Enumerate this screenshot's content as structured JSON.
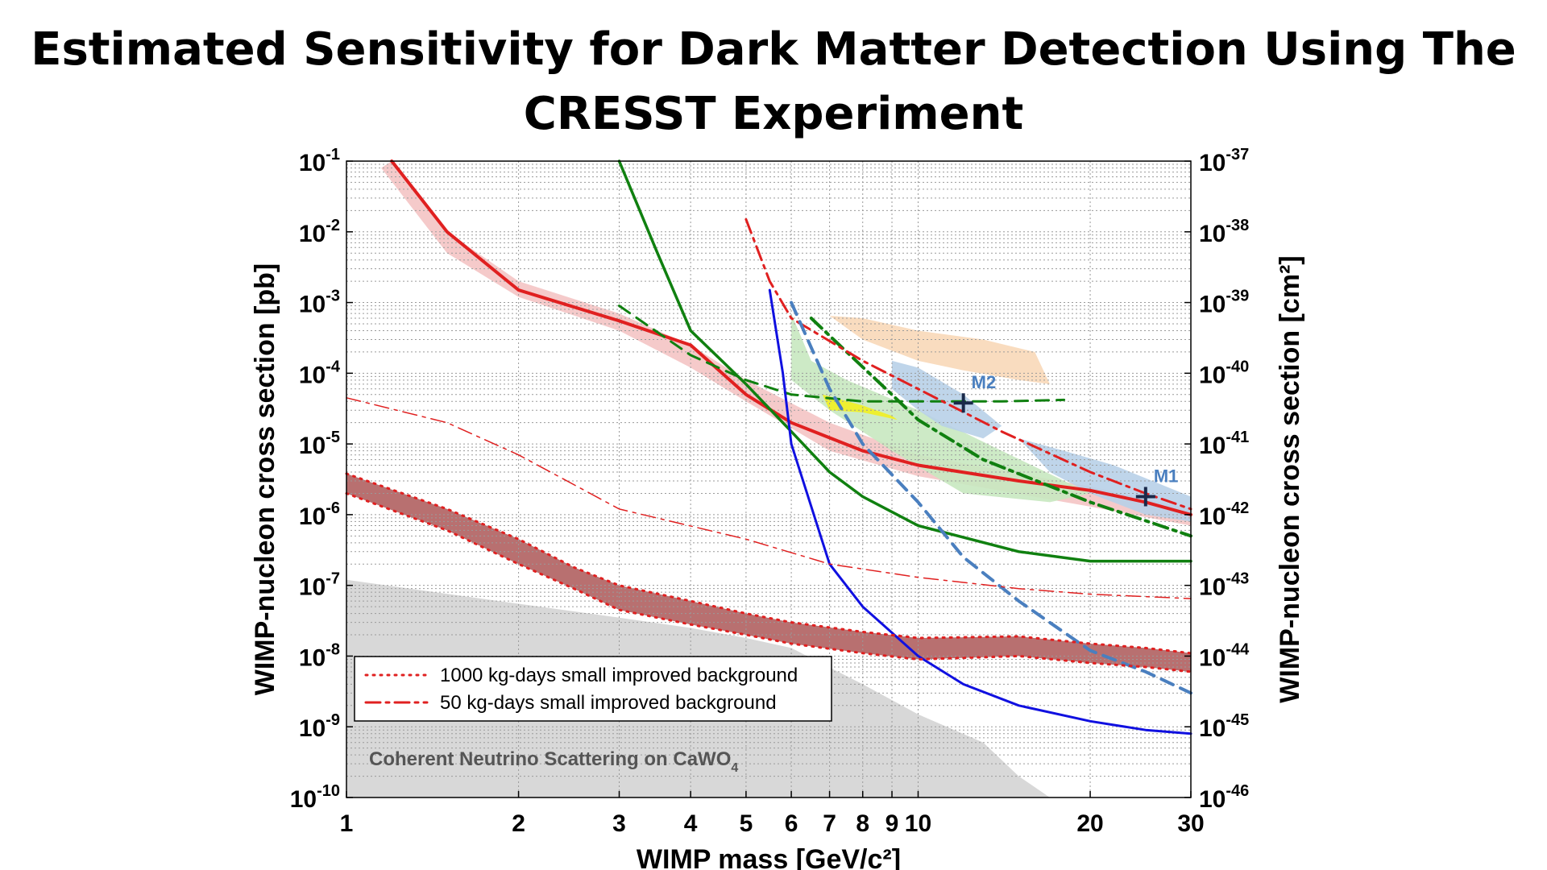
{
  "chart_data": {
    "type": "line",
    "title": "Estimated Sensitivity for Dark Matter Detection Using The CRESST Experiment",
    "xlabel": "WIMP mass [GeV/c²]",
    "ylabel_left": "WIMP-nucleon cross section [pb]",
    "ylabel_right": "WIMP-nucleon cross section [cm²]",
    "xscale": "log",
    "yscale": "log",
    "xlim": [
      1,
      30
    ],
    "ylim_left": [
      1e-10,
      0.1
    ],
    "ylim_right": [
      1e-46,
      1e-37
    ],
    "grid": true,
    "x_ticks": [
      {
        "value": 1,
        "label": "1"
      },
      {
        "value": 2,
        "label": "2"
      },
      {
        "value": 3,
        "label": "3"
      },
      {
        "value": 4,
        "label": "4"
      },
      {
        "value": 5,
        "label": "5"
      },
      {
        "value": 6,
        "label": "6"
      },
      {
        "value": 7,
        "label": "7"
      },
      {
        "value": 8,
        "label": "8"
      },
      {
        "value": 9,
        "label": "9"
      },
      {
        "value": 10,
        "label": "10"
      },
      {
        "value": 20,
        "label": "20"
      },
      {
        "value": 30,
        "label": "30"
      }
    ],
    "y_ticks_left": [
      {
        "exp": -1,
        "base": "10",
        "sup": "-1"
      },
      {
        "exp": -2,
        "base": "10",
        "sup": "-2"
      },
      {
        "exp": -3,
        "base": "10",
        "sup": "-3"
      },
      {
        "exp": -4,
        "base": "10",
        "sup": "-4"
      },
      {
        "exp": -5,
        "base": "10",
        "sup": "-5"
      },
      {
        "exp": -6,
        "base": "10",
        "sup": "-6"
      },
      {
        "exp": -7,
        "base": "10",
        "sup": "-7"
      },
      {
        "exp": -8,
        "base": "10",
        "sup": "-8"
      },
      {
        "exp": -9,
        "base": "10",
        "sup": "-9"
      },
      {
        "exp": -10,
        "base": "10",
        "sup": "-10"
      }
    ],
    "y_ticks_right": [
      {
        "exp": -37,
        "base": "10",
        "sup": "-37"
      },
      {
        "exp": -38,
        "base": "10",
        "sup": "-38"
      },
      {
        "exp": -39,
        "base": "10",
        "sup": "-39"
      },
      {
        "exp": -40,
        "base": "10",
        "sup": "-40"
      },
      {
        "exp": -41,
        "base": "10",
        "sup": "-41"
      },
      {
        "exp": -42,
        "base": "10",
        "sup": "-42"
      },
      {
        "exp": -43,
        "base": "10",
        "sup": "-43"
      },
      {
        "exp": -44,
        "base": "10",
        "sup": "-44"
      },
      {
        "exp": -45,
        "base": "10",
        "sup": "-45"
      },
      {
        "exp": -46,
        "base": "10",
        "sup": "-46"
      }
    ],
    "legend": {
      "placement": "bottom-left",
      "entries": [
        {
          "label": "1000 kg-days small improved background",
          "style": "dotted",
          "color": "#e02020"
        },
        {
          "label": "50 kg-days small improved background",
          "style": "dashdot",
          "color": "#e02020"
        }
      ]
    },
    "annotations": [
      {
        "text": "Coherent Neutrino Scattering on CaWO",
        "subscript": "4"
      }
    ],
    "markers": [
      {
        "label": "M1",
        "x": 25,
        "y": 1.8e-06,
        "color": "#4a7fbf"
      },
      {
        "label": "M2",
        "x": 12,
        "y": 3.8e-05,
        "color": "#4a7fbf"
      }
    ],
    "regions": [
      {
        "name": "neutrino floor",
        "color": "#d8d8d8",
        "points": [
          [
            1,
            1.2e-07
          ],
          [
            2,
            5.5e-08
          ],
          [
            3,
            3.5e-08
          ],
          [
            4,
            2.5e-08
          ],
          [
            5,
            1.8e-08
          ],
          [
            6,
            1.3e-08
          ],
          [
            8,
            4e-09
          ],
          [
            10,
            1.5e-09
          ],
          [
            13,
            6e-10
          ],
          [
            15,
            2e-10
          ],
          [
            17,
            1e-10
          ]
        ]
      },
      {
        "name": "1000 kg-days band",
        "color": "#b06060",
        "upper": [
          [
            1,
            3.8e-06
          ],
          [
            1.5,
            1.2e-06
          ],
          [
            2,
            4.5e-07
          ],
          [
            2.5,
            1.8e-07
          ],
          [
            3,
            1e-07
          ],
          [
            4,
            6e-08
          ],
          [
            5,
            4e-08
          ],
          [
            6,
            3e-08
          ],
          [
            8,
            2.2e-08
          ],
          [
            10,
            1.8e-08
          ],
          [
            15,
            1.9e-08
          ],
          [
            20,
            1.5e-08
          ],
          [
            25,
            1.3e-08
          ],
          [
            30,
            1.1e-08
          ]
        ],
        "lower": [
          [
            1,
            2e-06
          ],
          [
            1.5,
            6e-07
          ],
          [
            2,
            2e-07
          ],
          [
            2.5,
            9e-08
          ],
          [
            3,
            4.5e-08
          ],
          [
            4,
            2.8e-08
          ],
          [
            5,
            2e-08
          ],
          [
            6,
            1.5e-08
          ],
          [
            8,
            1.1e-08
          ],
          [
            10,
            9e-09
          ],
          [
            15,
            1e-08
          ],
          [
            20,
            8e-09
          ],
          [
            25,
            7e-09
          ],
          [
            30,
            6e-09
          ]
        ]
      },
      {
        "name": "red band",
        "color": "#f4c4c4",
        "upper": [
          [
            1.2,
            0.1
          ],
          [
            1.5,
            0.01
          ],
          [
            2,
            0.002
          ],
          [
            3,
            0.0007
          ],
          [
            4,
            0.00025
          ],
          [
            5,
            8e-05
          ],
          [
            7,
            2e-05
          ],
          [
            10,
            7e-06
          ],
          [
            20,
            2.5e-06
          ],
          [
            30,
            1.2e-06
          ]
        ],
        "lower": [
          [
            1.15,
            0.08
          ],
          [
            1.5,
            0.005
          ],
          [
            2,
            0.0012
          ],
          [
            3,
            0.0004
          ],
          [
            4,
            0.00012
          ],
          [
            5,
            4e-05
          ],
          [
            7,
            8e-06
          ],
          [
            10,
            3.5e-06
          ],
          [
            20,
            1.3e-06
          ],
          [
            30,
            7e-07
          ]
        ]
      },
      {
        "name": "green region",
        "color": "#c8e8c0",
        "points": [
          [
            6,
            0.0007
          ],
          [
            6.5,
            0.00015
          ],
          [
            7.5,
            8e-05
          ],
          [
            10,
            3e-05
          ],
          [
            14,
            8e-06
          ],
          [
            20,
            2e-06
          ],
          [
            17,
            1.5e-06
          ],
          [
            12,
            2e-06
          ],
          [
            9,
            8e-06
          ],
          [
            7,
            3e-05
          ],
          [
            6,
            8e-05
          ]
        ]
      },
      {
        "name": "orange region",
        "color": "#f8d8b8",
        "points": [
          [
            7,
            0.00065
          ],
          [
            8,
            0.0006
          ],
          [
            10,
            0.0004
          ],
          [
            13,
            0.0003
          ],
          [
            16,
            0.0002
          ],
          [
            17,
            7e-05
          ],
          [
            15,
            8e-05
          ],
          [
            12,
            0.00011
          ],
          [
            10,
            0.00015
          ],
          [
            8,
            0.0003
          ]
        ]
      },
      {
        "name": "blue M2 region",
        "color": "#b8d0e8",
        "points": [
          [
            9,
            0.00015
          ],
          [
            10,
            0.00012
          ],
          [
            12,
            5e-05
          ],
          [
            14,
            1.8e-05
          ],
          [
            13,
            1.2e-05
          ],
          [
            11,
            1.8e-05
          ],
          [
            10,
            3e-05
          ],
          [
            9,
            6e-05
          ]
        ]
      },
      {
        "name": "blue M1 region",
        "color": "#b8d0e8",
        "points": [
          [
            15,
            1.2e-05
          ],
          [
            18,
            8e-06
          ],
          [
            22,
            5e-06
          ],
          [
            30,
            1.8e-06
          ],
          [
            30,
            8e-07
          ],
          [
            25,
            1e-06
          ],
          [
            20,
            2e-06
          ],
          [
            17,
            4e-06
          ]
        ]
      },
      {
        "name": "yellow region",
        "color": "#f2f020",
        "points": [
          [
            6.8,
            5e-05
          ],
          [
            8,
            3.5e-05
          ],
          [
            9,
            2.5e-05
          ],
          [
            9.2,
            2.2e-05
          ],
          [
            8,
            2.8e-05
          ],
          [
            7,
            3e-05
          ]
        ]
      }
    ],
    "series": [
      {
        "color": "#e02020",
        "style": "solid",
        "width": 4,
        "points": [
          [
            1.2,
            0.1
          ],
          [
            1.5,
            0.01
          ],
          [
            2,
            0.0015
          ],
          [
            3,
            0.00055
          ],
          [
            4,
            0.00025
          ],
          [
            5,
            5e-05
          ],
          [
            6,
            2e-05
          ],
          [
            8,
            8e-06
          ],
          [
            10,
            5e-06
          ],
          [
            15,
            3e-06
          ],
          [
            20,
            2.2e-06
          ],
          [
            25,
            1.5e-06
          ],
          [
            30,
            1e-06
          ]
        ]
      },
      {
        "color": "#108010",
        "style": "solid",
        "width": 3.5,
        "points": [
          [
            3,
            0.1
          ],
          [
            3.5,
            0.005
          ],
          [
            4,
            0.0004
          ],
          [
            5,
            7e-05
          ],
          [
            6,
            1.5e-05
          ],
          [
            7,
            4e-06
          ],
          [
            8,
            1.8e-06
          ],
          [
            10,
            7e-07
          ],
          [
            15,
            3e-07
          ],
          [
            20,
            2.2e-07
          ],
          [
            30,
            2.2e-07
          ]
        ]
      },
      {
        "color": "#108010",
        "style": "dash",
        "width": 3,
        "points": [
          [
            3,
            0.0009
          ],
          [
            4,
            0.00018
          ],
          [
            5,
            8e-05
          ],
          [
            6,
            5e-05
          ],
          [
            8,
            4e-05
          ],
          [
            10,
            4e-05
          ],
          [
            14,
            4e-05
          ],
          [
            18,
            4.2e-05
          ]
        ]
      },
      {
        "color": "#108010",
        "style": "dashdot",
        "width": 4,
        "points": [
          [
            6.5,
            0.0006
          ],
          [
            7.5,
            0.0002
          ],
          [
            9,
            5e-05
          ],
          [
            10,
            2.2e-05
          ],
          [
            13,
            6e-06
          ],
          [
            20,
            1.5e-06
          ],
          [
            30,
            5e-07
          ]
        ]
      },
      {
        "color": "#e02020",
        "style": "dashdot",
        "width": 3,
        "points": [
          [
            5,
            0.015
          ],
          [
            5.5,
            0.002
          ],
          [
            6,
            0.0006
          ],
          [
            8,
            0.00015
          ],
          [
            10,
            6e-05
          ],
          [
            14,
            1.5e-05
          ],
          [
            20,
            4e-06
          ],
          [
            25,
            2e-06
          ],
          [
            30,
            1.2e-06
          ]
        ]
      },
      {
        "color": "#1010e0",
        "style": "solid",
        "width": 3,
        "points": [
          [
            5.5,
            0.0015
          ],
          [
            5.8,
            0.0001
          ],
          [
            6,
            1e-05
          ],
          [
            7,
            2e-07
          ],
          [
            8,
            5e-08
          ],
          [
            10,
            1e-08
          ],
          [
            12,
            4e-09
          ],
          [
            15,
            2e-09
          ],
          [
            20,
            1.2e-09
          ],
          [
            25,
            9e-10
          ],
          [
            30,
            8e-10
          ]
        ]
      },
      {
        "color": "#4a7fbf",
        "style": "dash",
        "width": 4,
        "points": [
          [
            6,
            0.001
          ],
          [
            7,
            6e-05
          ],
          [
            8,
            1e-05
          ],
          [
            10,
            1.5e-06
          ],
          [
            12,
            2.5e-07
          ],
          [
            15,
            6e-08
          ],
          [
            20,
            1.2e-08
          ],
          [
            25,
            6e-09
          ],
          [
            30,
            3e-09
          ]
        ]
      },
      {
        "color": "#e02020",
        "style": "dashdot",
        "width": 1.5,
        "points": [
          [
            1,
            4.5e-05
          ],
          [
            1.5,
            2e-05
          ],
          [
            2,
            7e-06
          ],
          [
            3,
            1.2e-06
          ],
          [
            5,
            4.5e-07
          ],
          [
            7,
            2e-07
          ],
          [
            10,
            1.3e-07
          ],
          [
            15,
            9e-08
          ],
          [
            20,
            7.5e-08
          ],
          [
            30,
            6.5e-08
          ]
        ]
      },
      {
        "color": "#e02020",
        "style": "dotted",
        "width": 3,
        "points": [
          [
            1,
            3.8e-06
          ],
          [
            1.5,
            1.2e-06
          ],
          [
            2,
            4.5e-07
          ],
          [
            2.5,
            1.8e-07
          ],
          [
            3,
            1e-07
          ],
          [
            4,
            6e-08
          ],
          [
            5,
            4e-08
          ],
          [
            6,
            3e-08
          ],
          [
            8,
            2.2e-08
          ],
          [
            10,
            1.8e-08
          ],
          [
            15,
            1.9e-08
          ],
          [
            20,
            1.5e-08
          ],
          [
            25,
            1.3e-08
          ],
          [
            30,
            1.1e-08
          ]
        ]
      },
      {
        "color": "#e02020",
        "style": "dotted",
        "width": 3,
        "points": [
          [
            1,
            2e-06
          ],
          [
            1.5,
            6e-07
          ],
          [
            2,
            2e-07
          ],
          [
            2.5,
            9e-08
          ],
          [
            3,
            4.5e-08
          ],
          [
            4,
            2.8e-08
          ],
          [
            5,
            2e-08
          ],
          [
            6,
            1.5e-08
          ],
          [
            8,
            1.1e-08
          ],
          [
            10,
            9e-09
          ],
          [
            15,
            1e-08
          ],
          [
            20,
            8e-09
          ],
          [
            25,
            7e-09
          ],
          [
            30,
            6e-09
          ]
        ]
      }
    ]
  }
}
